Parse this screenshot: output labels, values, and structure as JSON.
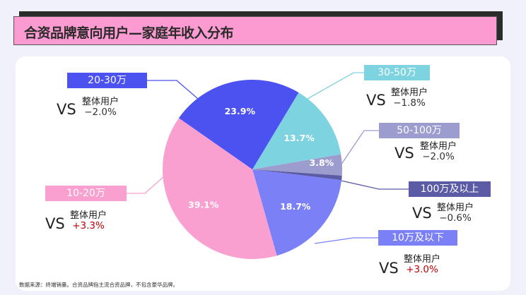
{
  "title": "合资品牌意向用户—家庭年收入分布",
  "footnote": "数据来源：终端销量。合资品牌指主流合资品牌，不包含豪华品牌。",
  "chart_data": {
    "type": "pie",
    "title": "合资品牌意向用户—家庭年收入分布",
    "slices": [
      {
        "label": "30-50万",
        "value": 13.7,
        "value_label": "13.7%",
        "color": "#7dd3e0",
        "vs": "VS",
        "vs_label": "整体用户",
        "diff": "−1.8%",
        "diff_color": "#333333"
      },
      {
        "label": "50-100万",
        "value": 3.8,
        "value_label": "3.8%",
        "color": "#9c9ccf",
        "vs": "VS",
        "vs_label": "整体用户",
        "diff": "−2.0%",
        "diff_color": "#333333"
      },
      {
        "label": "100万及以上",
        "value": 0.8,
        "value_label": "0.8%",
        "color": "#5b5ba6",
        "vs": "VS",
        "vs_label": "整体用户",
        "diff": "−0.6%",
        "diff_color": "#333333"
      },
      {
        "label": "10万及以下",
        "value": 18.7,
        "value_label": "18.7%",
        "color": "#7b80f6",
        "vs": "VS",
        "vs_label": "整体用户",
        "diff": "+3.0%",
        "diff_color": "#c00000"
      },
      {
        "label": "10-20万",
        "value": 39.1,
        "value_label": "39.1%",
        "color": "#f9a0d0",
        "vs": "VS",
        "vs_label": "整体用户",
        "diff": "+3.3%",
        "diff_color": "#c00000"
      },
      {
        "label": "20-30万",
        "value": 23.9,
        "value_label": "23.9%",
        "color": "#4b52f0",
        "vs": "VS",
        "vs_label": "整体用户",
        "diff": "−2.0%",
        "diff_color": "#333333"
      }
    ],
    "direction": "clockwise"
  }
}
